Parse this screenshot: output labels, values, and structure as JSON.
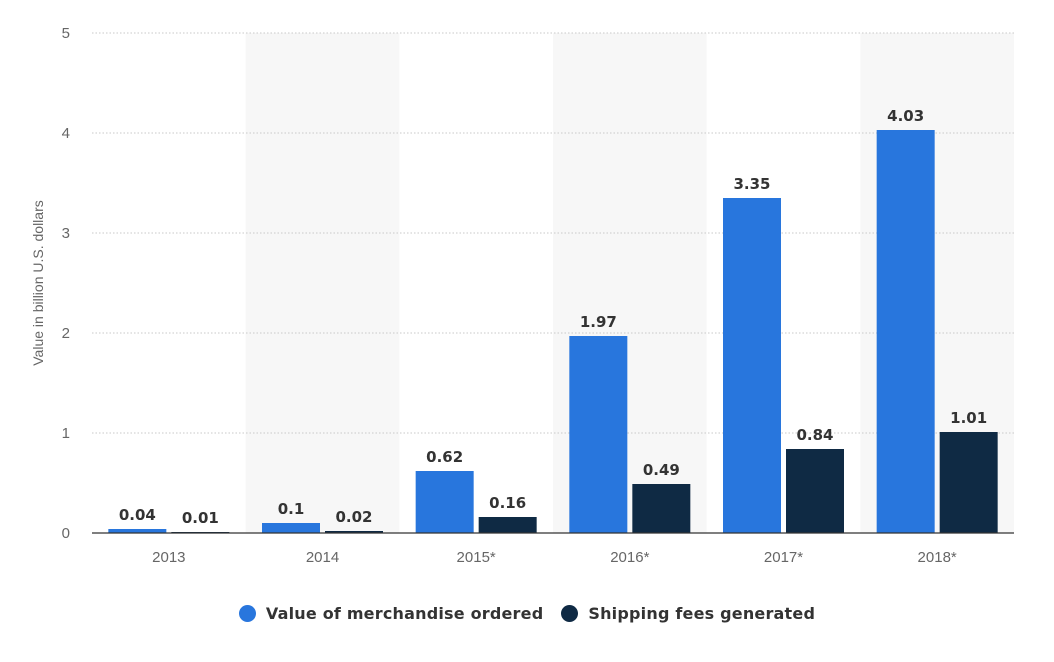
{
  "chart_data": {
    "type": "bar",
    "categories": [
      "2013",
      "2014",
      "2015*",
      "2016*",
      "2017*",
      "2018*"
    ],
    "series": [
      {
        "name": "Value of merchandise ordered",
        "values": [
          0.04,
          0.1,
          0.62,
          1.97,
          3.35,
          4.03
        ],
        "labels": [
          "0.04",
          "0.1",
          "0.62",
          "1.97",
          "3.35",
          "4.03"
        ]
      },
      {
        "name": "Shipping fees generated",
        "values": [
          0.01,
          0.02,
          0.16,
          0.49,
          0.84,
          1.01
        ],
        "labels": [
          "0.01",
          "0.02",
          "0.16",
          "0.49",
          "0.84",
          "1.01"
        ]
      }
    ],
    "ylabel": "Value in billion U.S. dollars",
    "xlabel": "",
    "ylim": [
      0,
      5
    ],
    "yticks": [
      "0",
      "1",
      "2",
      "3",
      "4",
      "5"
    ],
    "grid": true,
    "legend_position": "bottom-center",
    "colors": {
      "series": [
        "#2876dd",
        "#0f2a44"
      ],
      "band": "#f7f7f7",
      "grid": "#c8c8c8",
      "axis": "#333333",
      "tick_text": "#666666",
      "value_text": "#333333"
    }
  }
}
